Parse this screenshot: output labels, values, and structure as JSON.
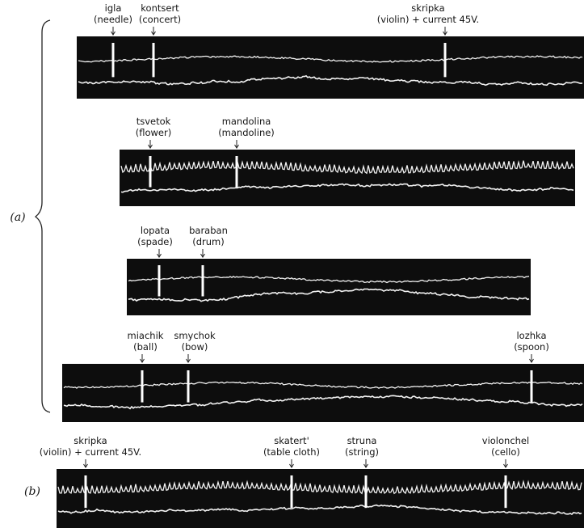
{
  "panels": [
    {
      "label": "(a)",
      "strips": [
        {
          "markers": [
            {
              "word": "igla",
              "gloss": "(needle)"
            },
            {
              "word": "kontsert",
              "gloss": "(concert)"
            },
            {
              "word": "skripka",
              "gloss": "(violin) + current 45V."
            }
          ]
        },
        {
          "markers": [
            {
              "word": "tsvetok",
              "gloss": "(flower)"
            },
            {
              "word": "mandolina",
              "gloss": "(mandoline)"
            }
          ]
        },
        {
          "markers": [
            {
              "word": "lopata",
              "gloss": "(spade)"
            },
            {
              "word": "baraban",
              "gloss": "(drum)"
            }
          ]
        },
        {
          "markers": [
            {
              "word": "miachik",
              "gloss": "(ball)"
            },
            {
              "word": "smychok",
              "gloss": "(bow)"
            },
            {
              "word": "lozhka",
              "gloss": "(spoon)"
            }
          ]
        }
      ]
    },
    {
      "label": "(b)",
      "strips": [
        {
          "markers": [
            {
              "word": "skripka",
              "gloss": "(violin) + current 45V."
            },
            {
              "word": "skatert'",
              "gloss": "(table cloth)"
            },
            {
              "word": "struna",
              "gloss": "(string)"
            },
            {
              "word": "violonchel",
              "gloss": "(cello)"
            }
          ]
        }
      ]
    }
  ]
}
